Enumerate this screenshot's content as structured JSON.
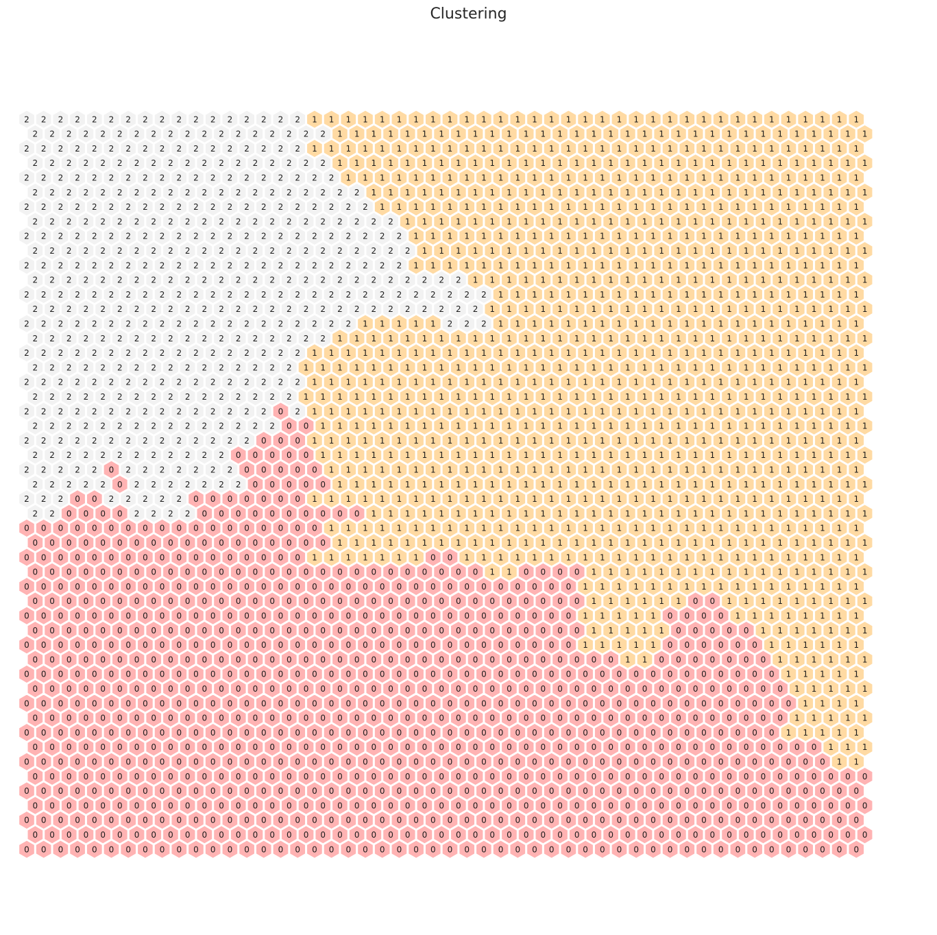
{
  "chart_data": {
    "type": "heatmap",
    "title": "Clustering",
    "columns": 50,
    "rows": 51,
    "row_offset": "odd rows shifted right by half a cell",
    "cluster_colors": {
      "0": "#ffb3b3",
      "1": "#ffdaa3",
      "2": "#f2f2f2"
    },
    "grid": [
      "22222222222222222111111111111111111111111111111111",
      "22222222222222222211111111111111111111111111111111",
      "22222222222222222111111111111111111111111111111111",
      "22222222222222222211111111111111111111111111111111",
      "22222222222222222221111111111111111111111111111111",
      "22222222222222222222111111111111111111111111111111",
      "22222222222222222222211111111111111111111111111111",
      "22222222222222222222221111111111111111111111111111",
      "22222222222222222222222111111111111111111111111111",
      "22222222222222222222222111111111111111111111111111",
      "22222222222222222222222111111111111111111111111111",
      "22222222222222222222222222111111111111111111111111",
      "22222222222222222222222222221111111111111111111111",
      "22222222222222222222222222211111111111111111111111",
      "22222222222222222222111112221111111111111111111111",
      "22222222222222222211111111111111111111111111111111",
      "22222222222222222111111111111111111111111111111111",
      "22222222222222221111111111111111111111111111111111",
      "22222222222222222111111111111111111111111111111111",
      "22222222222222221111111111111111111111111111111111",
      "22222222222222202111111111111111111111111111111111",
      "22222222222222200111111111111111111111111111111111",
      "22222222222222000111111111111111111111111111111111",
      "22222222222200000111111111111111111111111111111111",
      "22222022222220000011111111111111111111111111111111",
      "22222022222220000011111111111111111111111111111111",
      "22200222220000000111111111111111111111111111111111",
      "22000022220000000000111111111111111111111111111111",
      "00000000000000000011111111111111111111111111111111",
      "00000000000000000011111111111111111111111111111111",
      "00000000000000000111111100111111111111111111111111",
      "00000000000000000000000000011000011111111111111111",
      "00000000000000000000000000000000011111111111111111",
      "00000000000000000000000000000000011111100111111111",
      "00000000000000000000000000000000011111000011111111",
      "00000000000000000000000000000000011111000001111111",
      "00000000000000000000000000000000011111000000111111",
      "00000000000000000000000000000000000110000000111111",
      "00000000000000000000000000000000000000000000011111",
      "00000000000000000000000000000000000000000000011111",
      "00000000000000000000000000000000000000000000001111",
      "00000000000000000000000000000000000000000000011111",
      "00000000000000000000000000000000000000000000011111",
      "00000000000000000000000000000000000000000000000111",
      "00000000000000000000000000000000000000000000000011",
      "00000000000000000000000000000000000000000000000000",
      "00000000000000000000000000000000000000000000000000",
      "00000000000000000000000000000000000000000000000000",
      "00000000000000000000000000000000000000000000000000",
      "00000000000000000000000000000000000000000000000000",
      "00000000000000000000000000000000000000000000000000"
    ]
  }
}
